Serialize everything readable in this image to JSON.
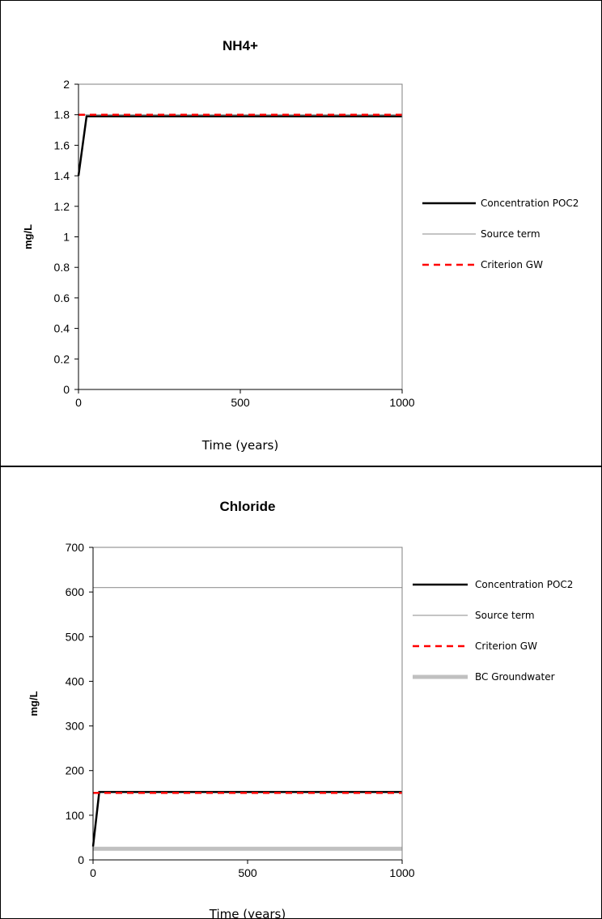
{
  "chart_data": [
    {
      "type": "line",
      "title": "NH4+",
      "xlabel": "Time (years)",
      "ylabel": "mg/L",
      "xlim": [
        0,
        1000
      ],
      "ylim": [
        0,
        2
      ],
      "xticks": [
        0,
        500,
        1000
      ],
      "xtick_labels": [
        "0",
        "500",
        "1000"
      ],
      "yticks": [
        0,
        0.2,
        0.4,
        0.6,
        0.8,
        1,
        1.2,
        1.4,
        1.6,
        1.8,
        2
      ],
      "ytick_labels": [
        "0",
        "0.2",
        "0.4",
        "0.6",
        "0.8",
        "1",
        "1.2",
        "1.4",
        "1.6",
        "1.8",
        "2"
      ],
      "grid": false,
      "legend_position": "right",
      "series": [
        {
          "name": "Concentration POC2",
          "color": "#000000",
          "style": "solid",
          "x": [
            0,
            25,
            1000
          ],
          "y": [
            1.4,
            1.79,
            1.79
          ]
        },
        {
          "name": "Source term",
          "color": "#a0a0a0",
          "style": "thin",
          "x": [
            0,
            1000
          ],
          "y": [
            1.8,
            1.8
          ]
        },
        {
          "name": "Criterion GW",
          "color": "#ff0000",
          "style": "dashed",
          "x": [
            0,
            1000
          ],
          "y": [
            1.8,
            1.8
          ]
        }
      ]
    },
    {
      "type": "line",
      "title": "Chloride",
      "xlabel": "Time (years)",
      "ylabel": "mg/L",
      "xlim": [
        0,
        1000
      ],
      "ylim": [
        0,
        700
      ],
      "xticks": [
        0,
        500,
        1000
      ],
      "xtick_labels": [
        "0",
        "500",
        "1000"
      ],
      "yticks": [
        0,
        100,
        200,
        300,
        400,
        500,
        600,
        700
      ],
      "ytick_labels": [
        "0",
        "100",
        "200",
        "300",
        "400",
        "500",
        "600",
        "700"
      ],
      "grid": false,
      "legend_position": "right",
      "series": [
        {
          "name": "Concentration POC2",
          "color": "#000000",
          "style": "solid",
          "x": [
            0,
            20,
            1000
          ],
          "y": [
            30,
            152,
            152
          ]
        },
        {
          "name": "Source term",
          "color": "#a0a0a0",
          "style": "thin",
          "x": [
            0,
            1000
          ],
          "y": [
            610,
            610
          ]
        },
        {
          "name": "Criterion GW",
          "color": "#ff0000",
          "style": "dashed",
          "x": [
            0,
            1000
          ],
          "y": [
            150,
            150
          ]
        },
        {
          "name": "BC Groundwater",
          "color": "#c0c0c0",
          "style": "thick",
          "x": [
            0,
            1000
          ],
          "y": [
            25,
            25
          ]
        }
      ]
    }
  ]
}
